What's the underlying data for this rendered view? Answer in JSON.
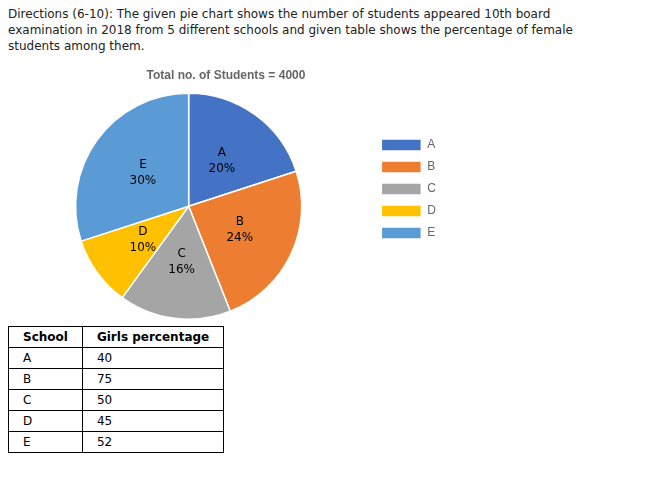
{
  "chart_data": [
    {
      "type": "pie",
      "title": "Total no. of Students = 4000",
      "annotations": [
        "Directions (6-10): The given pie chart shows the number of students appeared 10th board",
        "examination in 2018 from 5 different schools and given table shows the percentage of female",
        "students among them."
      ],
      "categories": [
        "A",
        "B",
        "C",
        "D",
        "E"
      ],
      "values": [
        20,
        24,
        16,
        10,
        30
      ],
      "value_labels": [
        "20%",
        "24%",
        "16%",
        "10%",
        "30%"
      ],
      "colors": [
        "#4472C4",
        "#ED7D31",
        "#A5A5A5",
        "#FFC000",
        "#5B9BD5"
      ],
      "data_labels": true,
      "legend": "right"
    },
    {
      "type": "table",
      "columns": [
        "School",
        "Girls percentage"
      ],
      "rows": [
        [
          "A",
          40
        ],
        [
          "B",
          75
        ],
        [
          "C",
          50
        ],
        [
          "D",
          45
        ],
        [
          "E",
          52
        ]
      ]
    }
  ]
}
